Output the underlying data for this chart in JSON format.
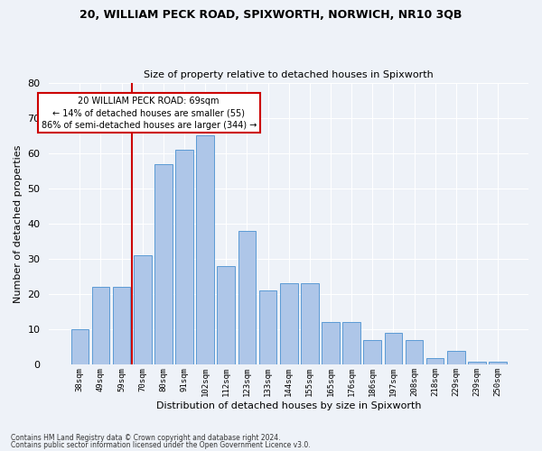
{
  "title1": "20, WILLIAM PECK ROAD, SPIXWORTH, NORWICH, NR10 3QB",
  "title2": "Size of property relative to detached houses in Spixworth",
  "xlabel": "Distribution of detached houses by size in Spixworth",
  "ylabel": "Number of detached properties",
  "bar_labels": [
    "38sqm",
    "49sqm",
    "59sqm",
    "70sqm",
    "80sqm",
    "91sqm",
    "102sqm",
    "112sqm",
    "123sqm",
    "133sqm",
    "144sqm",
    "155sqm",
    "165sqm",
    "176sqm",
    "186sqm",
    "197sqm",
    "208sqm",
    "218sqm",
    "229sqm",
    "239sqm",
    "250sqm"
  ],
  "bar_values": [
    10,
    22,
    22,
    31,
    57,
    61,
    65,
    28,
    38,
    21,
    23,
    23,
    12,
    12,
    7,
    9,
    7,
    2,
    4,
    1,
    1
  ],
  "bar_color": "#aec6e8",
  "bar_edge_color": "#5b9bd5",
  "vline_color": "#cc0000",
  "annotation_text": "20 WILLIAM PECK ROAD: 69sqm\n← 14% of detached houses are smaller (55)\n86% of semi-detached houses are larger (344) →",
  "annotation_box_color": "white",
  "annotation_box_edge": "#cc0000",
  "ylim": [
    0,
    80
  ],
  "yticks": [
    0,
    10,
    20,
    30,
    40,
    50,
    60,
    70,
    80
  ],
  "footer1": "Contains HM Land Registry data © Crown copyright and database right 2024.",
  "footer2": "Contains public sector information licensed under the Open Government Licence v3.0.",
  "bg_color": "#eef2f8",
  "plot_bg_color": "#eef2f8"
}
